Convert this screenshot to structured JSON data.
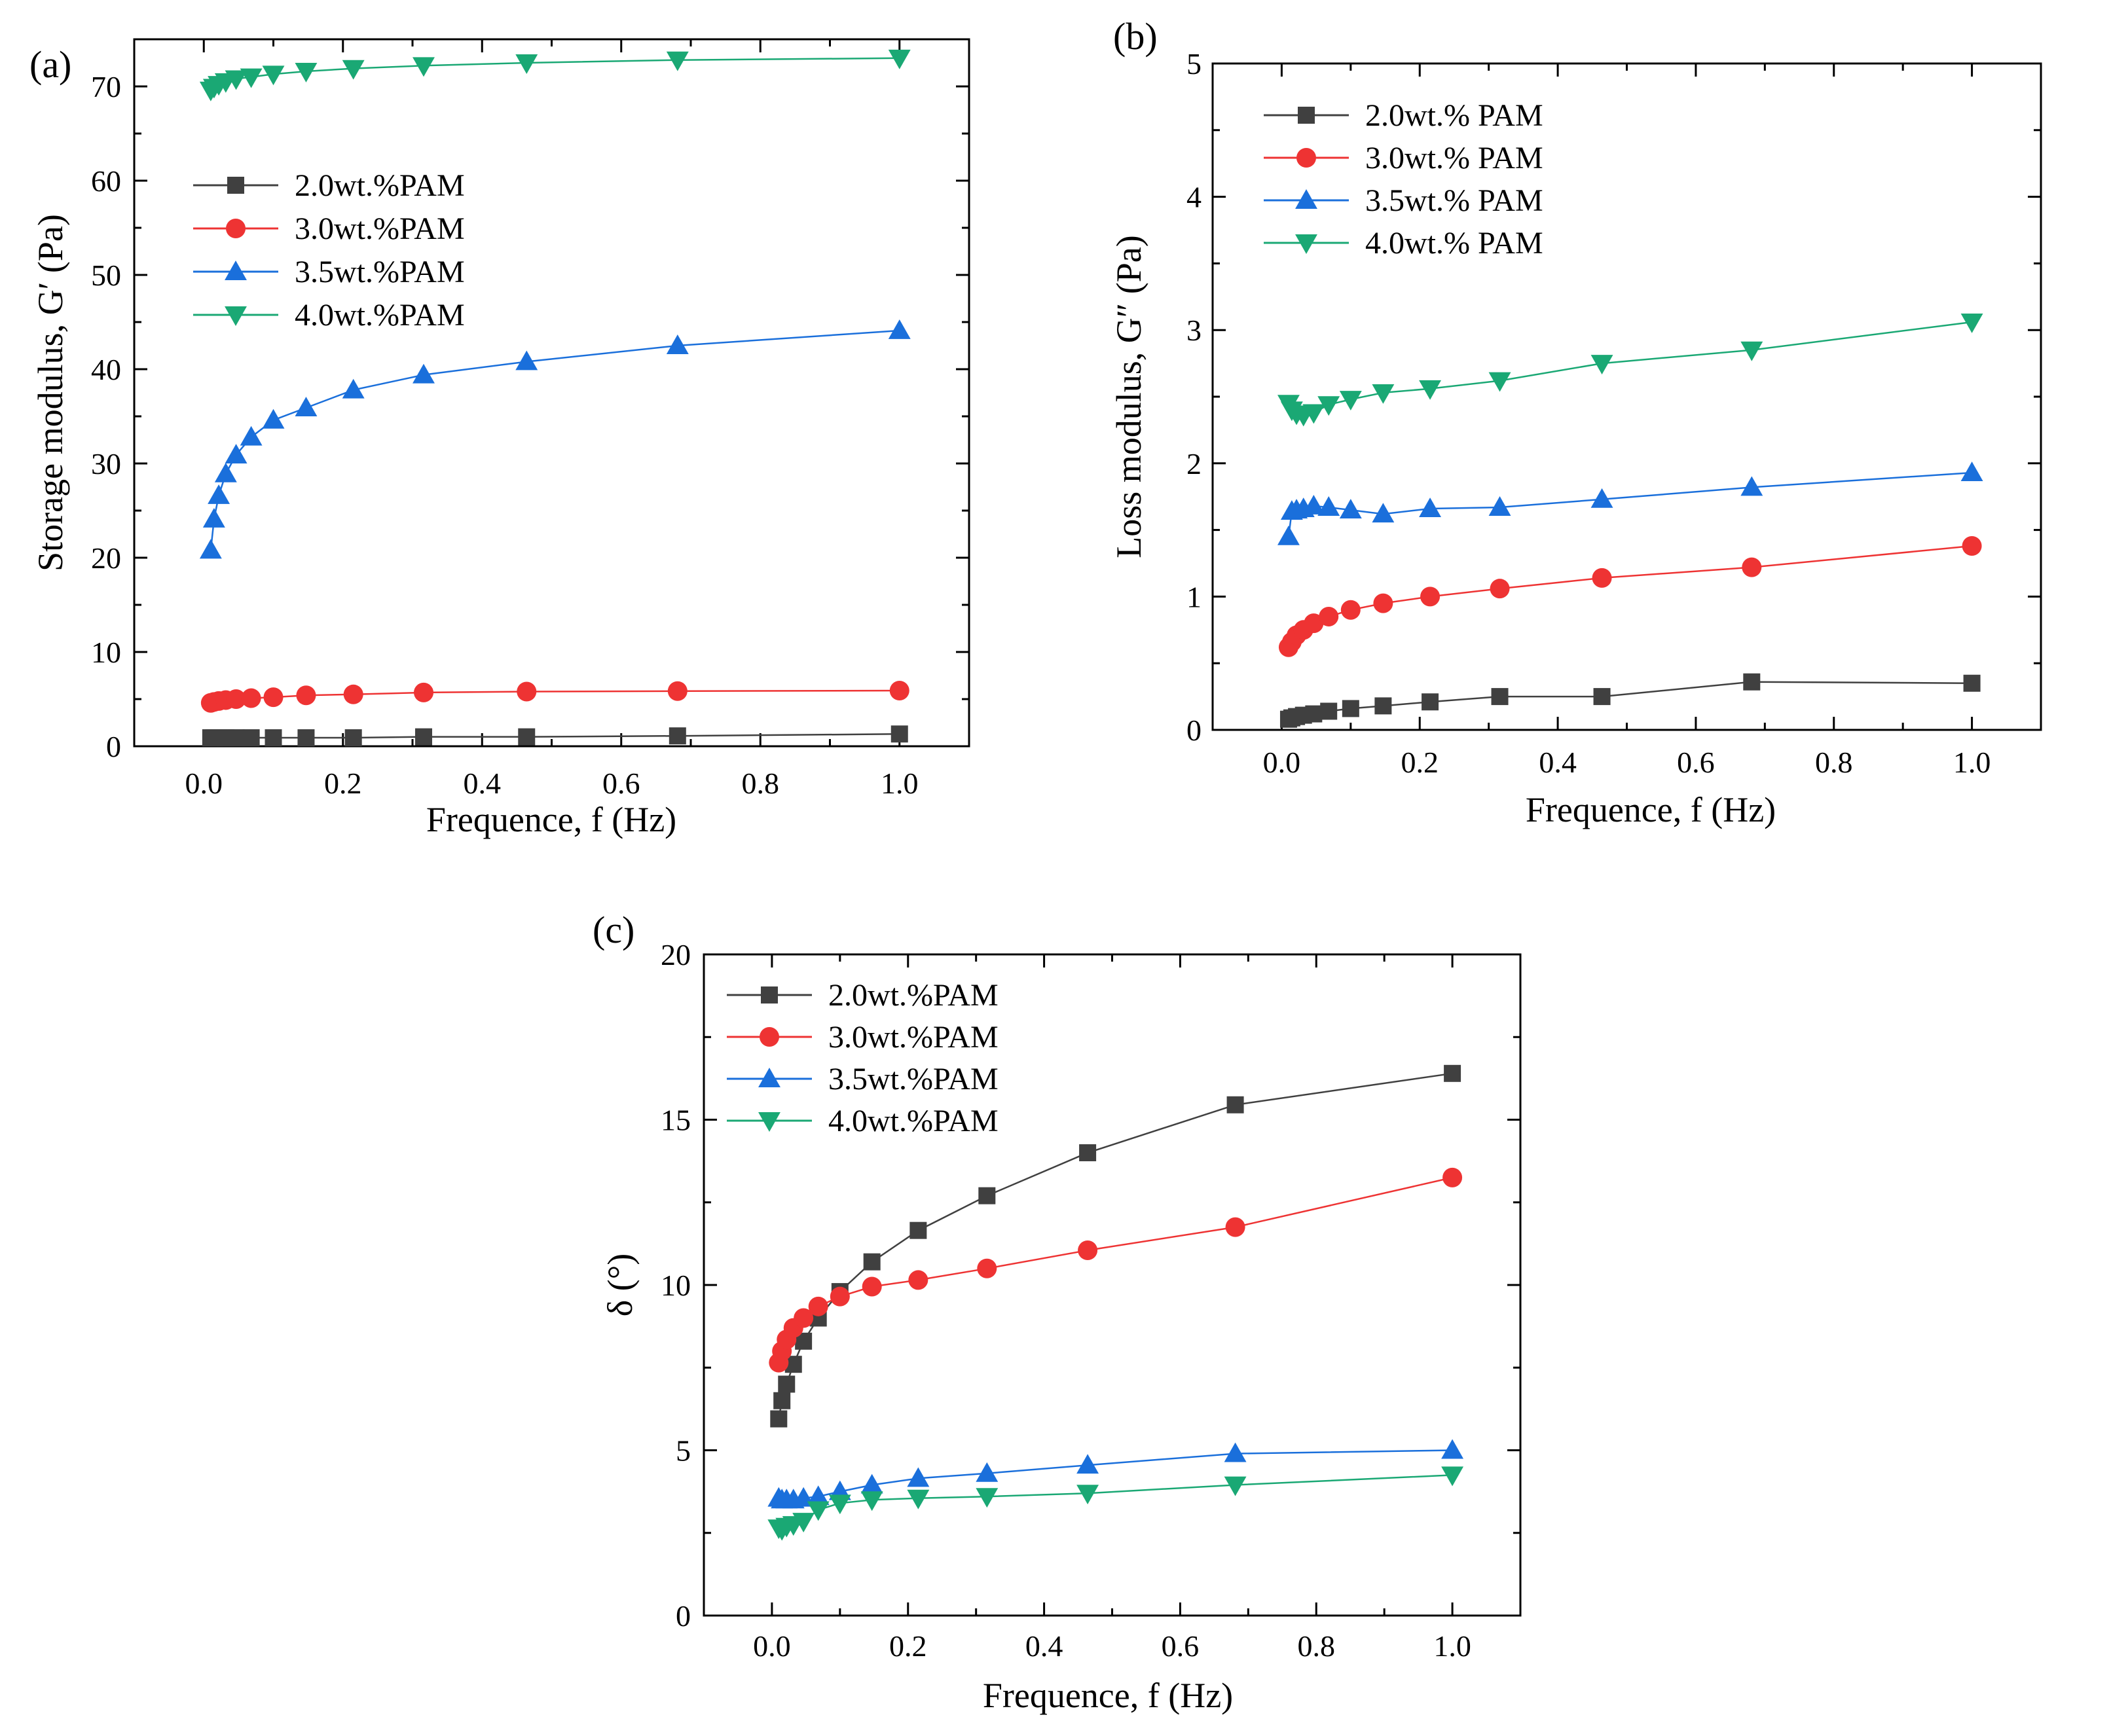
{
  "chart_data": [
    {
      "panel": "(a)",
      "type": "line",
      "xlabel": "Frequence, f (Hz)",
      "ylabel": "Storage modulus, G′ (Pa)",
      "xlim": [
        -0.1,
        1.1
      ],
      "ylim": [
        0,
        75
      ],
      "xticks": [
        0.0,
        0.2,
        0.4,
        0.6,
        0.8,
        1.0
      ],
      "xtick_labels": [
        "0.0",
        "0.2",
        "0.4",
        "0.6",
        "0.8",
        "1.0"
      ],
      "yticks": [
        0,
        10,
        20,
        30,
        40,
        50,
        60,
        70
      ],
      "ytick_labels": [
        "0",
        "10",
        "20",
        "30",
        "40",
        "50",
        "60",
        "70"
      ],
      "legend_position": "upper-left",
      "x": [
        0.01,
        0.0147,
        0.0215,
        0.0316,
        0.0464,
        0.0681,
        0.1,
        0.147,
        0.215,
        0.316,
        0.464,
        0.681,
        1.0
      ],
      "series": [
        {
          "name": "2.0wt.%PAM",
          "color": "#404040",
          "marker": "square",
          "values": [
            0.9,
            0.9,
            0.9,
            0.9,
            0.9,
            0.9,
            0.9,
            0.9,
            0.9,
            1.0,
            1.0,
            1.1,
            1.3
          ]
        },
        {
          "name": "3.0wt.%PAM",
          "color": "#ee3333",
          "marker": "circle",
          "values": [
            4.6,
            4.7,
            4.8,
            4.9,
            5.0,
            5.1,
            5.2,
            5.4,
            5.5,
            5.7,
            5.8,
            5.85,
            5.9
          ]
        },
        {
          "name": "3.5wt.%PAM",
          "color": "#1a6fdb",
          "marker": "triangle-up",
          "values": [
            20.8,
            24.1,
            26.6,
            28.9,
            30.9,
            32.8,
            34.6,
            35.9,
            37.8,
            39.4,
            40.8,
            42.5,
            44.1
          ]
        },
        {
          "name": "4.0wt.%PAM",
          "color": "#1aa874",
          "marker": "triangle-down",
          "values": [
            69.6,
            69.9,
            70.2,
            70.5,
            70.8,
            71.0,
            71.3,
            71.6,
            71.9,
            72.2,
            72.5,
            72.8,
            73.0
          ]
        }
      ]
    },
    {
      "panel": "(b)",
      "type": "line",
      "xlabel": "Frequence, f (Hz)",
      "ylabel": "Loss modulus, G″ (Pa)",
      "xlim": [
        -0.1,
        1.1
      ],
      "ylim": [
        0,
        5
      ],
      "xticks": [
        0.0,
        0.2,
        0.4,
        0.6,
        0.8,
        1.0
      ],
      "xtick_labels": [
        "0.0",
        "0.2",
        "0.4",
        "0.6",
        "0.8",
        "1.0"
      ],
      "yticks": [
        0,
        1,
        2,
        3,
        4,
        5
      ],
      "ytick_labels": [
        "0",
        "1",
        "2",
        "3",
        "4",
        "5"
      ],
      "legend_position": "upper-left",
      "x": [
        0.01,
        0.0147,
        0.0215,
        0.0316,
        0.0464,
        0.0681,
        0.1,
        0.147,
        0.215,
        0.316,
        0.464,
        0.681,
        1.0
      ],
      "series": [
        {
          "name": "2.0wt.% PAM",
          "color": "#404040",
          "marker": "square",
          "values": [
            0.08,
            0.09,
            0.1,
            0.11,
            0.12,
            0.14,
            0.16,
            0.18,
            0.21,
            0.25,
            0.25,
            0.36,
            0.35
          ]
        },
        {
          "name": "3.0wt.% PAM",
          "color": "#ee3333",
          "marker": "circle",
          "values": [
            0.62,
            0.66,
            0.71,
            0.75,
            0.8,
            0.85,
            0.9,
            0.95,
            1.0,
            1.06,
            1.14,
            1.22,
            1.38
          ]
        },
        {
          "name": "3.5wt.% PAM",
          "color": "#1a6fdb",
          "marker": "triangle-up",
          "values": [
            1.45,
            1.64,
            1.65,
            1.66,
            1.68,
            1.67,
            1.65,
            1.62,
            1.66,
            1.67,
            1.73,
            1.82,
            1.93
          ]
        },
        {
          "name": "4.0wt.% PAM",
          "color": "#1aa874",
          "marker": "triangle-down",
          "values": [
            2.45,
            2.4,
            2.37,
            2.36,
            2.38,
            2.44,
            2.48,
            2.53,
            2.56,
            2.62,
            2.75,
            2.85,
            3.06
          ]
        }
      ]
    },
    {
      "panel": "(c)",
      "type": "line",
      "xlabel": "Frequence, f (Hz)",
      "ylabel": "δ (°)",
      "xlim": [
        -0.1,
        1.1
      ],
      "ylim": [
        0,
        20
      ],
      "xticks": [
        0.0,
        0.2,
        0.4,
        0.6,
        0.8,
        1.0
      ],
      "xtick_labels": [
        "0.0",
        "0.2",
        "0.4",
        "0.6",
        "0.8",
        "1.0"
      ],
      "yticks": [
        0,
        5,
        10,
        15,
        20
      ],
      "ytick_labels": [
        "0",
        "5",
        "10",
        "15",
        "20"
      ],
      "legend_position": "upper-left",
      "x": [
        0.01,
        0.0147,
        0.0215,
        0.0316,
        0.0464,
        0.0681,
        0.1,
        0.147,
        0.215,
        0.316,
        0.464,
        0.681,
        1.0
      ],
      "series": [
        {
          "name": "2.0wt.%PAM",
          "color": "#404040",
          "marker": "square",
          "values": [
            5.95,
            6.5,
            7.0,
            7.6,
            8.3,
            9.0,
            9.8,
            10.7,
            11.65,
            12.7,
            14.0,
            15.45,
            16.4
          ]
        },
        {
          "name": "3.0wt.%PAM",
          "color": "#ee3333",
          "marker": "circle",
          "values": [
            7.65,
            8.0,
            8.35,
            8.7,
            9.0,
            9.35,
            9.65,
            9.95,
            10.15,
            10.5,
            11.05,
            11.75,
            13.25
          ]
        },
        {
          "name": "3.5wt.%PAM",
          "color": "#1a6fdb",
          "marker": "triangle-up",
          "values": [
            3.55,
            3.5,
            3.5,
            3.5,
            3.55,
            3.6,
            3.75,
            3.95,
            4.15,
            4.3,
            4.55,
            4.9,
            5.0
          ]
        },
        {
          "name": "4.0wt.%PAM",
          "color": "#1aa874",
          "marker": "triangle-down",
          "values": [
            2.65,
            2.6,
            2.7,
            2.75,
            2.85,
            3.2,
            3.4,
            3.5,
            3.55,
            3.6,
            3.7,
            3.95,
            4.25
          ]
        }
      ]
    }
  ]
}
